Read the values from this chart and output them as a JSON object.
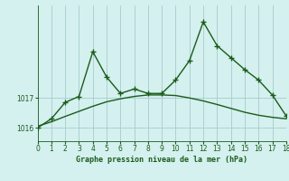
{
  "x": [
    0,
    1,
    2,
    3,
    4,
    5,
    6,
    7,
    8,
    9,
    10,
    11,
    12,
    13,
    14,
    15,
    16,
    17,
    18
  ],
  "y_main": [
    1016.0,
    1016.3,
    1016.85,
    1017.05,
    1018.55,
    1017.7,
    1017.15,
    1017.3,
    1017.15,
    1017.15,
    1017.6,
    1018.25,
    1019.55,
    1018.75,
    1018.35,
    1017.95,
    1017.6,
    1017.1,
    1016.4
  ],
  "y_trend": [
    1016.05,
    1016.2,
    1016.38,
    1016.55,
    1016.72,
    1016.87,
    1016.97,
    1017.05,
    1017.1,
    1017.1,
    1017.08,
    1017.0,
    1016.9,
    1016.78,
    1016.65,
    1016.52,
    1016.42,
    1016.35,
    1016.3
  ],
  "xlim": [
    0,
    18
  ],
  "ylim": [
    1015.55,
    1020.1
  ],
  "yticks": [
    1016,
    1017
  ],
  "xticks": [
    0,
    1,
    2,
    3,
    4,
    5,
    6,
    7,
    8,
    9,
    10,
    11,
    12,
    13,
    14,
    15,
    16,
    17,
    18
  ],
  "xlabel": "Graphe pression niveau de la mer (hPa)",
  "line_color": "#1a5c1a",
  "bg_color": "#d4f0ef",
  "grid_color": "#a8cccc",
  "marker": "+",
  "marker_size": 4,
  "line_width": 1.0
}
